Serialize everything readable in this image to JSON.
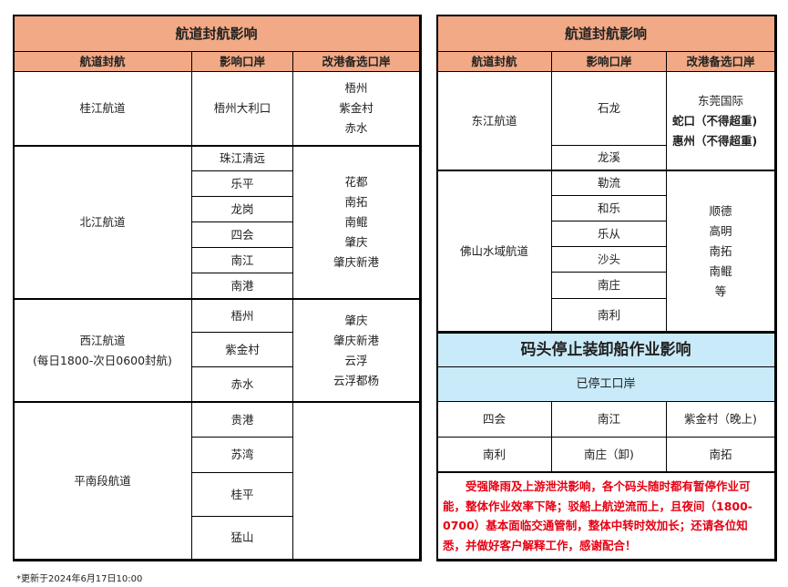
{
  "left": {
    "title": "航道封航影响",
    "headers": [
      "航道封航",
      "影响口岸",
      "改港备选口岸"
    ],
    "groups": [
      {
        "channel": "桂江航道",
        "ports": [
          "梧州大利口"
        ],
        "alternatives": [
          "梧州",
          "紫金村",
          "赤水"
        ]
      },
      {
        "channel": "北江航道",
        "ports": [
          "珠江清远",
          "乐平",
          "龙岗",
          "四会",
          "南江",
          "南港"
        ],
        "alternatives": [
          "花都",
          "南拓",
          "南鲲",
          "肇庆",
          "肇庆新港"
        ]
      },
      {
        "channel": "西江航道",
        "channel_note": "(每日1800-次日0600封航)",
        "ports": [
          "梧州",
          "紫金村",
          "赤水"
        ],
        "alternatives": [
          "肇庆",
          "肇庆新港",
          "云浮",
          "云浮都杨"
        ]
      },
      {
        "channel": "平南段航道",
        "ports": [
          "贵港",
          "苏湾",
          "桂平",
          "猛山"
        ],
        "alternatives": []
      }
    ]
  },
  "right": {
    "title": "航道封航影响",
    "headers": [
      "航道封航",
      "影响口岸",
      "改港备选口岸"
    ],
    "groups": [
      {
        "channel": "东江航道",
        "ports": [
          "石龙",
          "龙溪"
        ],
        "alternatives": [
          "东莞国际",
          "蛇口（不得超重)",
          "惠州（不得超重)"
        ]
      },
      {
        "channel": "佛山水域航道",
        "ports": [
          "勒流",
          "和乐",
          "乐从",
          "沙头",
          "南庄",
          "南利"
        ],
        "alternatives": [
          "顺德",
          "高明",
          "南拓",
          "南鲲",
          "等"
        ]
      }
    ]
  },
  "stoppage": {
    "title": "码头停止装卸船作业影响",
    "subtitle": "已停工口岸",
    "ports": [
      "四会",
      "南江",
      "紫金村（晚上)",
      "南利",
      "南庄（卸)",
      "南拓"
    ]
  },
  "notice": "　　受强降雨及上游泄洪影响，各个码头随时都有暂停作业可能，整体作业效率下降；驳船上航逆流而上，且夜间（1800-0700）基本面临交通管制，整体中转时效加长；还请各位知悉，并做好客户解释工作，感谢配合！",
  "footer": "*更新于2024年6月17日10:00",
  "colors": {
    "header": "#F2A985",
    "stoppage": "#C9EAF8",
    "notice": "#E60012"
  }
}
